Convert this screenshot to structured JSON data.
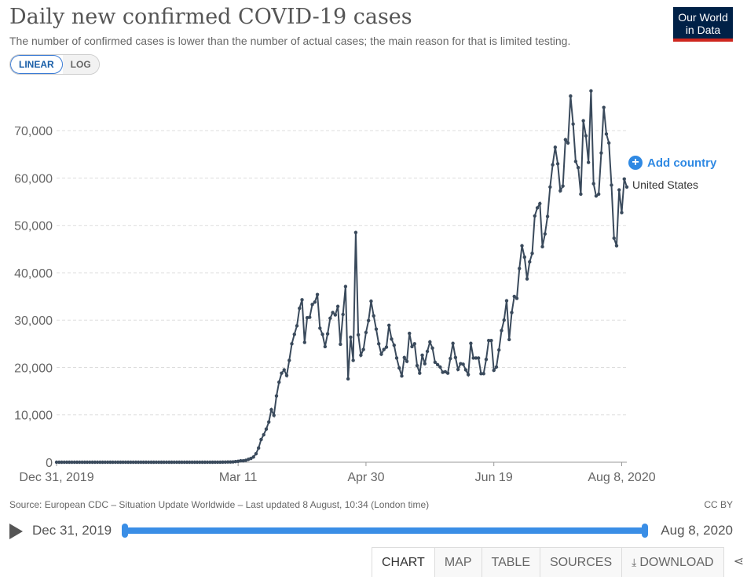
{
  "header": {
    "title": "Daily new confirmed COVID-19 cases",
    "subtitle": "The number of confirmed cases is lower than the number of actual cases; the main reason for that is limited testing.",
    "logo_line1": "Our World",
    "logo_line2": "in Data"
  },
  "scale_toggle": {
    "linear": "LINEAR",
    "log": "LOG",
    "selected": "LINEAR"
  },
  "legend": {
    "add_country": "Add country",
    "series_label": "United States"
  },
  "footer": {
    "source": "Source: European CDC – Situation Update Worldwide – Last updated 8 August, 10:34 (London time)",
    "license": "CC BY"
  },
  "timeline": {
    "start": "Dec 31, 2019",
    "end": "Aug 8, 2020"
  },
  "tabs": [
    "CHART",
    "MAP",
    "TABLE",
    "SOURCES",
    "DOWNLOAD"
  ],
  "colors": {
    "line": "#3a4a5c",
    "accent": "#2f89e3",
    "logo_bg": "#002147",
    "logo_bar": "#ce261e"
  },
  "chart_data": {
    "type": "line",
    "title": "Daily new confirmed COVID-19 cases",
    "x_start": "2019-12-31",
    "x_end": "2020-08-08",
    "x_ticks": [
      "Dec 31, 2019",
      "Mar 11",
      "Apr 30",
      "Jun 19",
      "Aug 8, 2020"
    ],
    "ylim": [
      0,
      78000
    ],
    "y_ticks": [
      "0",
      "10,000",
      "20,000",
      "30,000",
      "40,000",
      "50,000",
      "60,000",
      "70,000"
    ],
    "y_tick_values": [
      0,
      10000,
      20000,
      30000,
      40000,
      50000,
      60000,
      70000
    ],
    "grid": true,
    "series": [
      {
        "name": "United States",
        "values": [
          0,
          0,
          0,
          0,
          0,
          0,
          0,
          0,
          0,
          0,
          0,
          0,
          0,
          0,
          0,
          0,
          0,
          0,
          0,
          0,
          0,
          1,
          0,
          0,
          0,
          0,
          1,
          0,
          0,
          0,
          0,
          0,
          0,
          0,
          0,
          0,
          0,
          0,
          0,
          0,
          0,
          0,
          0,
          0,
          0,
          0,
          0,
          0,
          0,
          0,
          0,
          0,
          0,
          0,
          0,
          0,
          0,
          0,
          0,
          0,
          0,
          2,
          5,
          8,
          10,
          20,
          30,
          50,
          60,
          80,
          130,
          200,
          300,
          300,
          400,
          600,
          800,
          1100,
          1800,
          3000,
          4800,
          5800,
          7000,
          8500,
          11100,
          9900,
          14000,
          16900,
          18800,
          19500,
          18300,
          21500,
          25000,
          27000,
          28800,
          32500,
          34300,
          25300,
          30500,
          30600,
          33300,
          33800,
          35400,
          28300,
          27000,
          24400,
          27100,
          30400,
          31600,
          31100,
          32900,
          24900,
          31200,
          37100,
          17600,
          26400,
          21500,
          48500,
          26900,
          22600,
          23800,
          27400,
          29900,
          34000,
          30900,
          28100,
          25000,
          22800,
          23800,
          24300,
          28900,
          26000,
          24700,
          22000,
          19900,
          18200,
          22100,
          21300,
          27200,
          24400,
          25000,
          20400,
          18800,
          22600,
          20800,
          23400,
          25400,
          24100,
          21100,
          20600,
          20100,
          19000,
          19100,
          18800,
          21900,
          25100,
          22100,
          19600,
          20800,
          20700,
          19500,
          18500,
          25100,
          22000,
          22000,
          22000,
          18700,
          18700,
          21700,
          25700,
          25700,
          19400,
          20100,
          23700,
          27800,
          30000,
          34100,
          25900,
          31600,
          35000,
          34600,
          40900,
          45700,
          43300,
          38700,
          42300,
          44100,
          52000,
          53700,
          54600,
          45500,
          48200,
          51900,
          58100,
          62800,
          66500,
          63000,
          57300,
          58300,
          68100,
          67400,
          77300,
          71400,
          63500,
          62200,
          56600,
          72100,
          68900,
          63300,
          78400,
          58800,
          56200,
          56600,
          65300,
          74900,
          69300,
          67400,
          58500,
          47300,
          45700,
          57500,
          52700,
          59800,
          58100
        ]
      }
    ]
  }
}
